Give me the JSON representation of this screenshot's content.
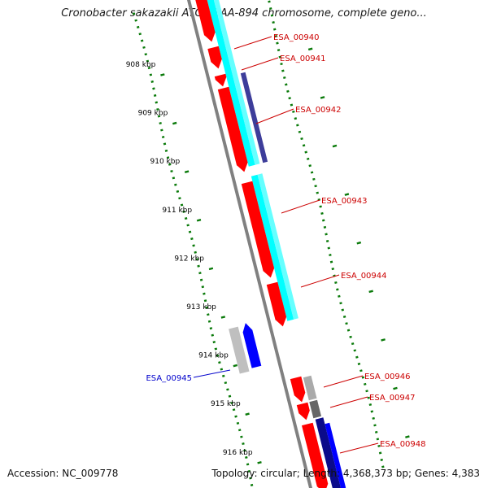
{
  "title": "Cronobacter sakazakii ATCC BAA-894 chromosome, complete geno...",
  "footer": {
    "accession": "Accession: NC_009778",
    "topology": "Topology: circular;",
    "length": "Length: 4,368,373 bp;",
    "genes": "Genes: 4,383"
  },
  "colors": {
    "forward_cds": "#ff0000",
    "reverse_cds": "#0000ff",
    "forward_cog": "#00ffff",
    "reverse_cog": "#3d3d9a",
    "gc_skew": "#0a7a0a",
    "backbone": "#808080",
    "label_forward": "#cc0000",
    "label_reverse": "#0000cc"
  },
  "ticks": [
    {
      "label": "908 kbp",
      "kbp": 908
    },
    {
      "label": "909 kbp",
      "kbp": 909
    },
    {
      "label": "910 kbp",
      "kbp": 910
    },
    {
      "label": "911 kbp",
      "kbp": 911
    },
    {
      "label": "912 kbp",
      "kbp": 912
    },
    {
      "label": "913 kbp",
      "kbp": 913
    },
    {
      "label": "914 kbp",
      "kbp": 914
    },
    {
      "label": "915 kbp",
      "kbp": 915
    },
    {
      "label": "916 kbp",
      "kbp": 916
    }
  ],
  "genes": [
    {
      "label": "ESA_00940",
      "strand": "forward"
    },
    {
      "label": "ESA_00941",
      "strand": "forward"
    },
    {
      "label": "ESA_00942",
      "strand": "forward"
    },
    {
      "label": "ESA_00943",
      "strand": "forward"
    },
    {
      "label": "ESA_00944",
      "strand": "forward"
    },
    {
      "label": "ESA_00945",
      "strand": "reverse"
    },
    {
      "label": "ESA_00946",
      "strand": "forward"
    },
    {
      "label": "ESA_00947",
      "strand": "forward"
    },
    {
      "label": "ESA_00948",
      "strand": "forward"
    }
  ]
}
